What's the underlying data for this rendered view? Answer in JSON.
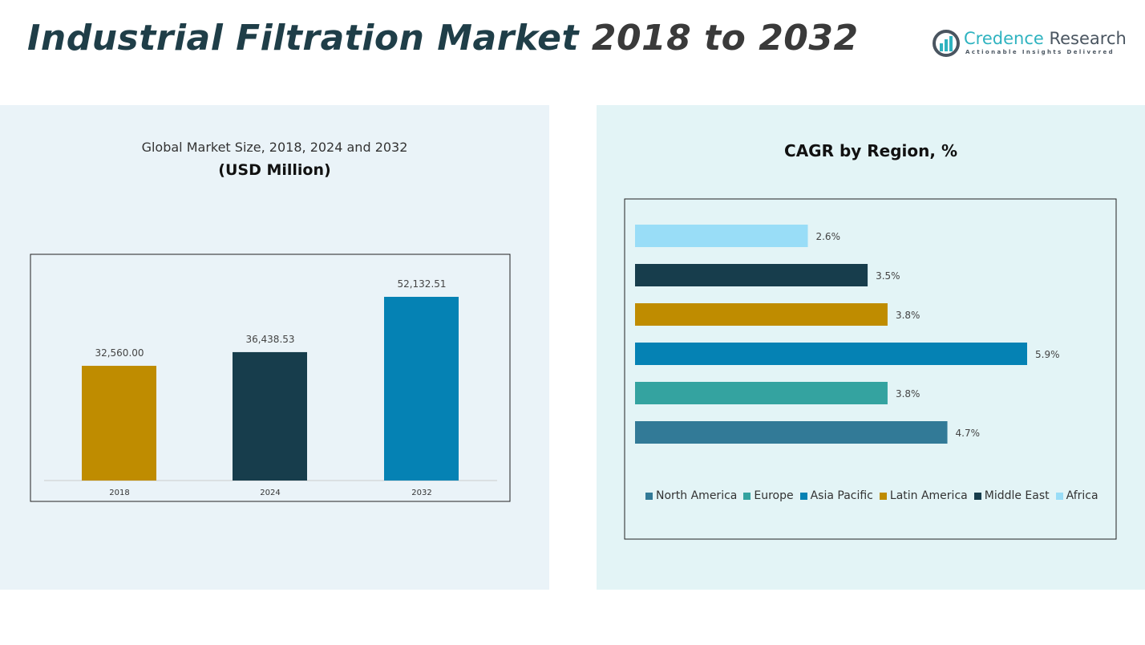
{
  "header": {
    "title_main": "Industrial Filtration Market",
    "title_years": "2018 to 2032"
  },
  "logo": {
    "name_a": "Credence",
    "name_b": "Research",
    "tagline": "Actionable Insights Delivered"
  },
  "chart_data": [
    {
      "type": "bar",
      "title": "Global Market Size, 2018, 2024 and 2032",
      "subtitle": "(USD Million)",
      "categories": [
        "2018",
        "2024",
        "2032"
      ],
      "values": [
        32560.0,
        36438.53,
        52132.51
      ],
      "labels": [
        "32,560.00",
        "36,438.53",
        "52,132.51"
      ],
      "colors": [
        "#bf8c00",
        "#173d4c",
        "#0582b4"
      ],
      "ylim": [
        0,
        60000
      ],
      "grid": false
    },
    {
      "type": "bar",
      "orientation": "horizontal",
      "title": "CAGR by Region, %",
      "categories": [
        "North America",
        "Europe",
        "Asia Pacific",
        "Latin America",
        "Middle East",
        "Africa"
      ],
      "values": [
        4.7,
        3.8,
        5.9,
        3.8,
        3.5,
        2.6
      ],
      "labels": [
        "4.7%",
        "3.8%",
        "5.9%",
        "3.8%",
        "3.5%",
        "2.6%"
      ],
      "colors": [
        "#327a97",
        "#34a3a0",
        "#0582b4",
        "#bf8c00",
        "#173d4c",
        "#99ddf7"
      ],
      "legend": "bottom",
      "grid": false
    }
  ]
}
